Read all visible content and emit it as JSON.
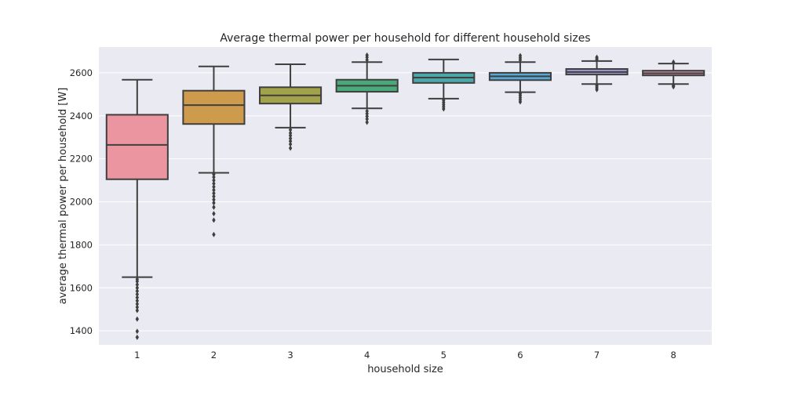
{
  "chart_data": {
    "type": "box",
    "title": "Average thermal power per household for different household sizes",
    "xlabel": "household size",
    "ylabel": "average thermal power per household [W]",
    "ylim": [
      1335,
      2720
    ],
    "yticks": [
      1400,
      1600,
      1800,
      2000,
      2200,
      2400,
      2600
    ],
    "grid": true,
    "categories": [
      "1",
      "2",
      "3",
      "4",
      "5",
      "6",
      "7",
      "8"
    ],
    "boxes": [
      {
        "category": "1",
        "color": "#eb95a0",
        "whisker_low": 1650,
        "q1": 2105,
        "median": 2265,
        "q3": 2405,
        "whisker_high": 2568,
        "outliers": [
          1370,
          1398,
          1455,
          1495,
          1510,
          1525,
          1540,
          1555,
          1570,
          1585,
          1600,
          1615,
          1630,
          1640
        ]
      },
      {
        "category": "2",
        "color": "#ce9a4b",
        "whisker_low": 2135,
        "q1": 2362,
        "median": 2450,
        "q3": 2517,
        "whisker_high": 2630,
        "outliers": [
          1848,
          1915,
          1945,
          1975,
          1995,
          2010,
          2025,
          2040,
          2055,
          2070,
          2085,
          2100,
          2115,
          2128
        ]
      },
      {
        "category": "3",
        "color": "#a2a24b",
        "whisker_low": 2345,
        "q1": 2457,
        "median": 2495,
        "q3": 2533,
        "whisker_high": 2640,
        "outliers": [
          2250,
          2268,
          2282,
          2295,
          2308,
          2320,
          2335
        ]
      },
      {
        "category": "4",
        "color": "#4aa97b",
        "whisker_low": 2435,
        "q1": 2512,
        "median": 2540,
        "q3": 2568,
        "whisker_high": 2650,
        "outliers": [
          2370,
          2385,
          2398,
          2410,
          2422,
          2660,
          2672,
          2682
        ]
      },
      {
        "category": "5",
        "color": "#4aa8a8",
        "whisker_low": 2480,
        "q1": 2553,
        "median": 2578,
        "q3": 2600,
        "whisker_high": 2662,
        "outliers": [
          2432,
          2442,
          2452,
          2462,
          2472
        ]
      },
      {
        "category": "6",
        "color": "#56a8d6",
        "whisker_low": 2510,
        "q1": 2566,
        "median": 2584,
        "q3": 2600,
        "whisker_high": 2650,
        "outliers": [
          2465,
          2475,
          2485,
          2495,
          2503,
          2660,
          2670,
          2680
        ]
      },
      {
        "category": "7",
        "color": "#9c9ad4",
        "whisker_low": 2548,
        "q1": 2592,
        "median": 2604,
        "q3": 2618,
        "whisker_high": 2655,
        "outliers": [
          2522,
          2530,
          2538,
          2545,
          2658,
          2665,
          2672
        ]
      },
      {
        "category": "8",
        "color": "#cf8fa0",
        "whisker_low": 2548,
        "q1": 2588,
        "median": 2598,
        "q3": 2610,
        "whisker_high": 2643,
        "outliers": [
          2535,
          2540,
          2545,
          2650
        ]
      }
    ]
  }
}
